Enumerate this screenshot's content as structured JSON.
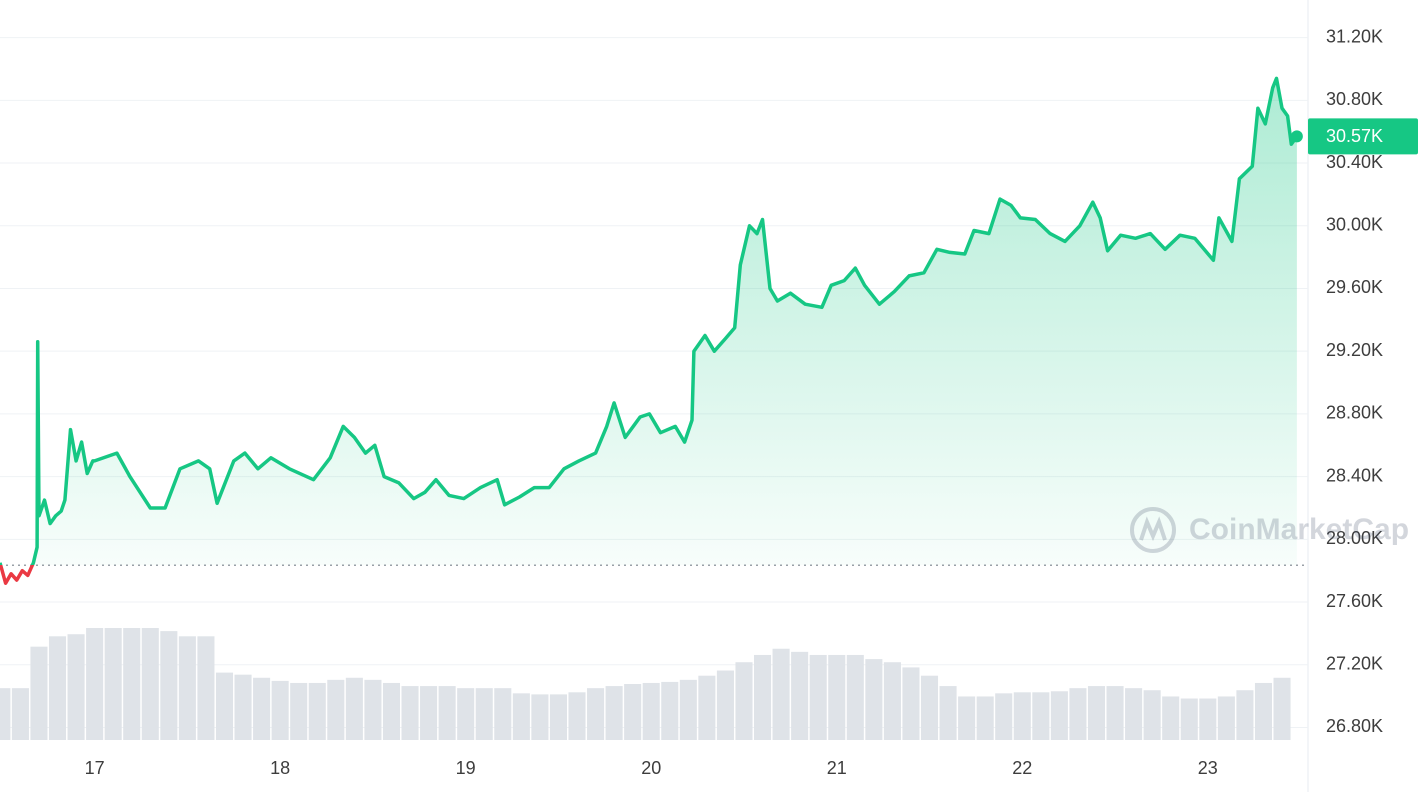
{
  "chart_data": {
    "type": "area",
    "color": "#16c784",
    "down_color": "#ea3943",
    "baseline": 27835,
    "x": [
      16.49,
      16.52,
      16.55,
      16.58,
      16.61,
      16.64,
      16.67,
      16.69,
      16.693,
      16.7,
      16.73,
      16.76,
      16.79,
      16.82,
      16.84,
      16.87,
      16.9,
      16.93,
      16.96,
      16.99,
      17.0,
      17.12,
      17.19,
      17.3,
      17.38,
      17.46,
      17.56,
      17.62,
      17.66,
      17.75,
      17.81,
      17.88,
      17.95,
      18.05,
      18.18,
      18.27,
      18.34,
      18.4,
      18.46,
      18.51,
      18.56,
      18.64,
      18.72,
      18.78,
      18.84,
      18.91,
      18.99,
      19.08,
      19.17,
      19.21,
      19.29,
      19.37,
      19.45,
      19.53,
      19.61,
      19.7,
      19.76,
      19.8,
      19.86,
      19.94,
      19.99,
      20.05,
      20.13,
      20.18,
      20.22,
      20.23,
      20.29,
      20.34,
      20.4,
      20.45,
      20.48,
      20.53,
      20.57,
      20.6,
      20.64,
      20.68,
      20.75,
      20.83,
      20.92,
      20.97,
      21.04,
      21.1,
      21.15,
      21.23,
      21.31,
      21.39,
      21.47,
      21.54,
      21.61,
      21.69,
      21.74,
      21.82,
      21.88,
      21.94,
      21.99,
      22.07,
      22.15,
      22.23,
      22.31,
      22.38,
      22.42,
      22.46,
      22.53,
      22.61,
      22.69,
      22.77,
      22.85,
      22.93,
      22.98,
      23.03,
      23.06,
      23.13,
      23.17,
      23.24,
      23.27,
      23.31,
      23.35,
      23.37,
      23.4,
      23.43,
      23.45,
      23.48
    ],
    "values": [
      27850,
      27720,
      27780,
      27740,
      27800,
      27770,
      27850,
      27950,
      29260,
      28150,
      28250,
      28100,
      28150,
      28180,
      28250,
      28700,
      28500,
      28620,
      28420,
      28500,
      28500,
      28550,
      28400,
      28200,
      28200,
      28450,
      28500,
      28450,
      28230,
      28500,
      28550,
      28450,
      28520,
      28450,
      28380,
      28520,
      28720,
      28650,
      28550,
      28600,
      28400,
      28360,
      28260,
      28300,
      28380,
      28280,
      28260,
      28330,
      28380,
      28220,
      28270,
      28330,
      28330,
      28450,
      28500,
      28550,
      28720,
      28870,
      28650,
      28780,
      28800,
      28680,
      28720,
      28620,
      28760,
      29200,
      29300,
      29200,
      29280,
      29350,
      29750,
      30000,
      29950,
      30040,
      29600,
      29520,
      29570,
      29500,
      29480,
      29620,
      29650,
      29730,
      29620,
      29500,
      29580,
      29680,
      29700,
      29850,
      29830,
      29820,
      29970,
      29950,
      30170,
      30130,
      30050,
      30040,
      29950,
      29900,
      30000,
      30150,
      30050,
      29840,
      29940,
      29920,
      29950,
      29850,
      29940,
      29920,
      29850,
      29780,
      30050,
      29900,
      30300,
      30380,
      30750,
      30650,
      30880,
      30940,
      30750,
      30700,
      30520,
      30570
    ],
    "volume": {
      "color": "#dfe3e8",
      "x": [
        16.5,
        16.6,
        16.7,
        16.8,
        16.9,
        17.0,
        17.1,
        17.2,
        17.3,
        17.4,
        17.5,
        17.6,
        17.7,
        17.8,
        17.9,
        18.0,
        18.1,
        18.2,
        18.3,
        18.4,
        18.5,
        18.6,
        18.7,
        18.8,
        18.9,
        19.0,
        19.1,
        19.2,
        19.3,
        19.4,
        19.5,
        19.6,
        19.7,
        19.8,
        19.9,
        20.0,
        20.1,
        20.2,
        20.3,
        20.4,
        20.5,
        20.6,
        20.7,
        20.8,
        20.9,
        21.0,
        21.1,
        21.2,
        21.3,
        21.4,
        21.5,
        21.6,
        21.7,
        21.8,
        21.9,
        22.0,
        22.1,
        22.2,
        22.3,
        22.4,
        22.5,
        22.6,
        22.7,
        22.8,
        22.9,
        23.0,
        23.1,
        23.2,
        23.3,
        23.4
      ],
      "values": [
        50,
        50,
        90,
        100,
        102,
        108,
        108,
        108,
        108,
        105,
        100,
        100,
        65,
        63,
        60,
        57,
        55,
        55,
        58,
        60,
        58,
        55,
        52,
        52,
        52,
        50,
        50,
        50,
        45,
        44,
        44,
        46,
        50,
        52,
        54,
        55,
        56,
        58,
        62,
        67,
        75,
        82,
        88,
        85,
        82,
        82,
        82,
        78,
        75,
        70,
        62,
        52,
        42,
        42,
        45,
        46,
        46,
        47,
        50,
        52,
        52,
        50,
        48,
        42,
        40,
        40,
        42,
        48,
        55,
        60
      ]
    },
    "current_price": {
      "value": 30570,
      "label": "30.57K"
    },
    "xlim": [
      16.49,
      23.54
    ],
    "xticks": [
      17,
      18,
      19,
      20,
      21,
      22,
      23
    ],
    "ylim": [
      26720,
      31440
    ],
    "yticks": [
      {
        "value": 26800,
        "label": "26.80K"
      },
      {
        "value": 27200,
        "label": "27.20K"
      },
      {
        "value": 27600,
        "label": "27.60K"
      },
      {
        "value": 28000,
        "label": "28.00K"
      },
      {
        "value": 28400,
        "label": "28.40K"
      },
      {
        "value": 28800,
        "label": "28.80K"
      },
      {
        "value": 29200,
        "label": "29.20K"
      },
      {
        "value": 29600,
        "label": "29.60K"
      },
      {
        "value": 30000,
        "label": "30.00K"
      },
      {
        "value": 30400,
        "label": "30.40K"
      },
      {
        "value": 30800,
        "label": "30.80K"
      },
      {
        "value": 31200,
        "label": "31.20K"
      }
    ],
    "grid": true,
    "watermark": "CoinMarketCap"
  }
}
